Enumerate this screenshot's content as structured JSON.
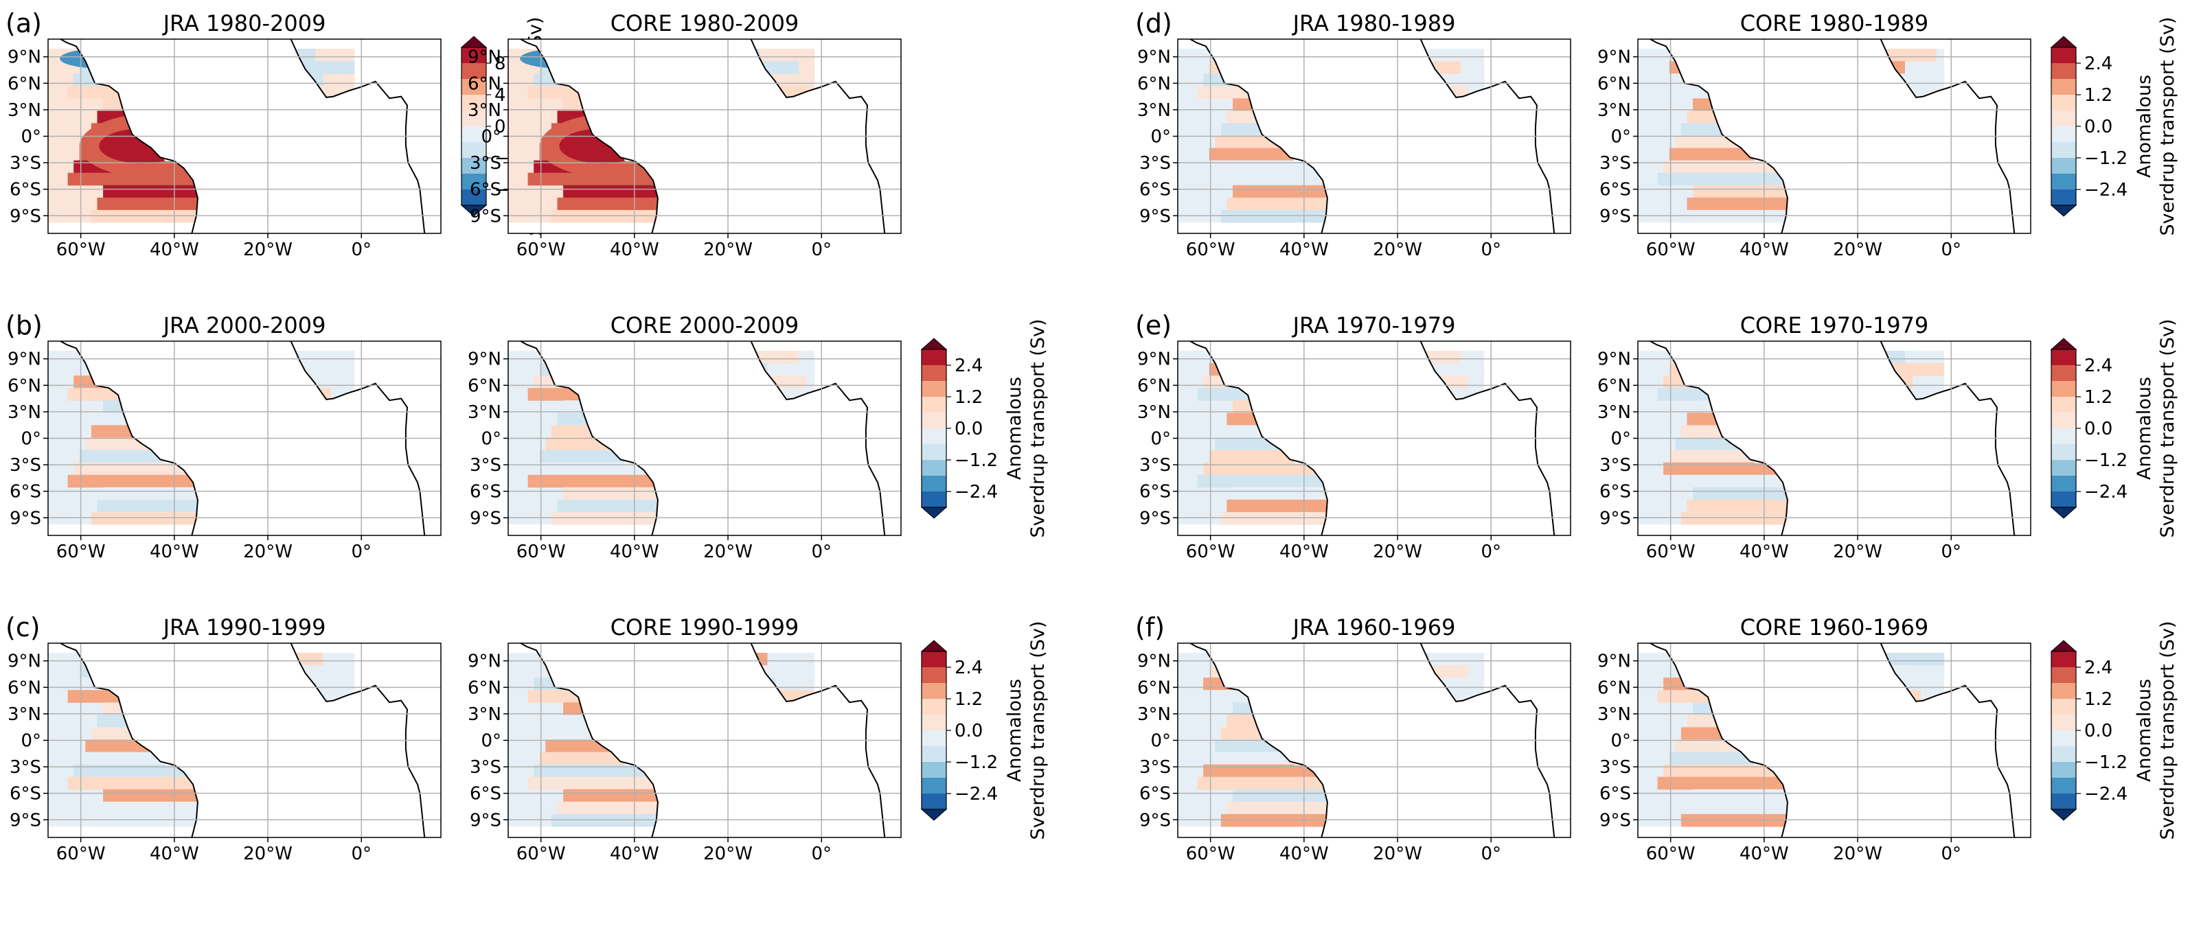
{
  "chart_data": [
    {
      "type": "heatmap",
      "panel_label": "(a)",
      "title": "JRA 1980-2009",
      "kind": "total",
      "colorbar": {
        "label": "Sverdrup transport (Sv)",
        "ticks": [
          "8",
          "4",
          "0",
          "−4",
          "−8"
        ]
      }
    },
    {
      "type": "heatmap",
      "panel_label": "",
      "title": "CORE 1980-2009",
      "kind": "total"
    },
    {
      "type": "heatmap",
      "panel_label": "(b)",
      "title": "JRA 2000-2009",
      "kind": "anom"
    },
    {
      "type": "heatmap",
      "panel_label": "",
      "title": "CORE 2000-2009",
      "kind": "anom",
      "colorbar": {
        "label": [
          "Anomalous",
          "Sverdrup transport (Sv)"
        ],
        "ticks": [
          "2.4",
          "1.2",
          "0.0",
          "−1.2",
          "−2.4"
        ]
      }
    },
    {
      "type": "heatmap",
      "panel_label": "(c)",
      "title": "JRA 1990-1999",
      "kind": "anom"
    },
    {
      "type": "heatmap",
      "panel_label": "",
      "title": "CORE 1990-1999",
      "kind": "anom",
      "colorbar": {
        "label": [
          "Anomalous",
          "Sverdrup transport (Sv)"
        ],
        "ticks": [
          "2.4",
          "1.2",
          "0.0",
          "−1.2",
          "−2.4"
        ]
      }
    },
    {
      "type": "heatmap",
      "panel_label": "(d)",
      "title": "JRA 1980-1989",
      "kind": "anom"
    },
    {
      "type": "heatmap",
      "panel_label": "",
      "title": "CORE 1980-1989",
      "kind": "anom",
      "colorbar": {
        "label": [
          "Anomalous",
          "Sverdrup transport (Sv)"
        ],
        "ticks": [
          "2.4",
          "1.2",
          "0.0",
          "−1.2",
          "−2.4"
        ]
      }
    },
    {
      "type": "heatmap",
      "panel_label": "(e)",
      "title": "JRA 1970-1979",
      "kind": "anom"
    },
    {
      "type": "heatmap",
      "panel_label": "",
      "title": "CORE 1970-1979",
      "kind": "anom",
      "colorbar": {
        "label": [
          "Anomalous",
          "Sverdrup transport (Sv)"
        ],
        "ticks": [
          "2.4",
          "1.2",
          "0.0",
          "−1.2",
          "−2.4"
        ]
      }
    },
    {
      "type": "heatmap",
      "panel_label": "(f)",
      "title": "JRA 1960-1969",
      "kind": "anom"
    },
    {
      "type": "heatmap",
      "panel_label": "",
      "title": "CORE 1960-1969",
      "kind": "anom",
      "colorbar": {
        "label": [
          "Anomalous",
          "Sverdrup transport (Sv)"
        ],
        "ticks": [
          "2.4",
          "1.2",
          "0.0",
          "−1.2",
          "−2.4"
        ]
      }
    }
  ],
  "axes": {
    "x_ticks": [
      "60°W",
      "40°W",
      "20°W",
      "0°"
    ],
    "y_ticks": [
      "9°N",
      "6°N",
      "3°N",
      "0°",
      "3°S",
      "6°S",
      "9°S"
    ],
    "lon_range": [
      -67,
      17
    ],
    "lat_range": [
      -11,
      11
    ]
  },
  "colors": {
    "anomaly_scale": [
      "#08306b",
      "#2166ac",
      "#4393c3",
      "#92c5de",
      "#d1e5f0",
      "#e7eff6",
      "#fbe4d8",
      "#fddbc7",
      "#f4a582",
      "#d6604d",
      "#b2182b",
      "#67001f"
    ],
    "white_contours": "#ffffff",
    "coast": "#000000",
    "grid": "#b0b0b0"
  }
}
